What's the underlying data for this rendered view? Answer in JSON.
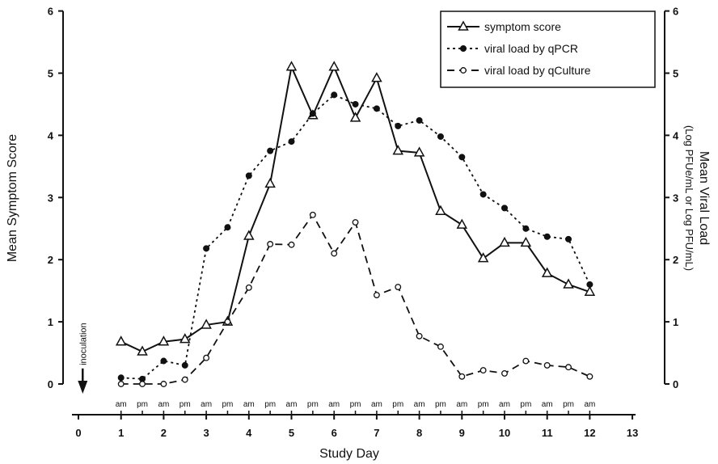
{
  "chart_data": {
    "type": "line",
    "x_axis": {
      "title": "Study Day",
      "range": [
        0,
        13
      ],
      "ticks": [
        "0",
        "1",
        "2",
        "3",
        "4",
        "5",
        "6",
        "7",
        "8",
        "9",
        "10",
        "11",
        "12",
        "13"
      ],
      "sub_ticks": [
        {
          "x": 1,
          "label": "am"
        },
        {
          "x": 1.5,
          "label": "pm"
        },
        {
          "x": 2,
          "label": "am"
        },
        {
          "x": 2.5,
          "label": "pm"
        },
        {
          "x": 3,
          "label": "am"
        },
        {
          "x": 3.5,
          "label": "pm"
        },
        {
          "x": 4,
          "label": "am"
        },
        {
          "x": 4.5,
          "label": "pm"
        },
        {
          "x": 5,
          "label": "am"
        },
        {
          "x": 5.5,
          "label": "pm"
        },
        {
          "x": 6,
          "label": "am"
        },
        {
          "x": 6.5,
          "label": "pm"
        },
        {
          "x": 7,
          "label": "am"
        },
        {
          "x": 7.5,
          "label": "pm"
        },
        {
          "x": 8,
          "label": "am"
        },
        {
          "x": 8.5,
          "label": "pm"
        },
        {
          "x": 9,
          "label": "am"
        },
        {
          "x": 9.5,
          "label": "pm"
        },
        {
          "x": 10,
          "label": "am"
        },
        {
          "x": 10.5,
          "label": "pm"
        },
        {
          "x": 11,
          "label": "am"
        },
        {
          "x": 11.5,
          "label": "pm"
        },
        {
          "x": 12,
          "label": "am"
        }
      ]
    },
    "y_left": {
      "title": "Mean Symptom Score",
      "range": [
        0,
        6
      ],
      "ticks": [
        "0",
        "1",
        "2",
        "3",
        "4",
        "5",
        "6"
      ]
    },
    "y_right": {
      "title": "Mean Viral Load",
      "subtitle": "(Log PFUe/mL or Log PFU/mL)",
      "range": [
        0,
        6
      ],
      "ticks": [
        "0",
        "1",
        "2",
        "3",
        "4",
        "5",
        "6"
      ]
    },
    "annotation": {
      "text": "inoculation",
      "x": 0.1
    },
    "legend": {
      "position": "top-right"
    },
    "series": [
      {
        "name": "symptom score",
        "style": "solid",
        "marker": "open-triangle",
        "color": "#111111",
        "points": [
          [
            1,
            0.68
          ],
          [
            1.5,
            0.52
          ],
          [
            2,
            0.68
          ],
          [
            2.5,
            0.72
          ],
          [
            3,
            0.95
          ],
          [
            3.5,
            1.0
          ],
          [
            4,
            2.38
          ],
          [
            4.5,
            3.22
          ],
          [
            5,
            5.1
          ],
          [
            5.5,
            4.32
          ],
          [
            6,
            5.1
          ],
          [
            6.5,
            4.28
          ],
          [
            7,
            4.92
          ],
          [
            7.5,
            3.75
          ],
          [
            8,
            3.72
          ],
          [
            8.5,
            2.78
          ],
          [
            9,
            2.56
          ],
          [
            9.5,
            2.02
          ],
          [
            10,
            2.27
          ],
          [
            10.5,
            2.27
          ],
          [
            11,
            1.78
          ],
          [
            11.5,
            1.6
          ],
          [
            12,
            1.48
          ]
        ]
      },
      {
        "name": "viral load by qPCR",
        "style": "dotted",
        "marker": "filled-circle",
        "color": "#111111",
        "points": [
          [
            1,
            0.1
          ],
          [
            1.5,
            0.08
          ],
          [
            2,
            0.37
          ],
          [
            2.5,
            0.3
          ],
          [
            3,
            2.18
          ],
          [
            3.5,
            2.52
          ],
          [
            4,
            3.35
          ],
          [
            4.5,
            3.75
          ],
          [
            5,
            3.9
          ],
          [
            5.5,
            4.35
          ],
          [
            6,
            4.65
          ],
          [
            6.5,
            4.5
          ],
          [
            7,
            4.43
          ],
          [
            7.5,
            4.15
          ],
          [
            8,
            4.24
          ],
          [
            8.5,
            3.98
          ],
          [
            9,
            3.65
          ],
          [
            9.5,
            3.05
          ],
          [
            10,
            2.83
          ],
          [
            10.5,
            2.5
          ],
          [
            11,
            2.37
          ],
          [
            11.5,
            2.33
          ],
          [
            12,
            1.6
          ]
        ]
      },
      {
        "name": "viral load by qCulture",
        "style": "dashed",
        "marker": "open-circle",
        "color": "#111111",
        "points": [
          [
            1,
            0.0
          ],
          [
            1.5,
            0.0
          ],
          [
            2,
            0.0
          ],
          [
            2.5,
            0.07
          ],
          [
            3,
            0.42
          ],
          [
            3.5,
            1.0
          ],
          [
            4,
            1.55
          ],
          [
            4.5,
            2.25
          ],
          [
            5,
            2.24
          ],
          [
            5.5,
            2.72
          ],
          [
            6,
            2.1
          ],
          [
            6.5,
            2.6
          ],
          [
            7,
            1.43
          ],
          [
            7.5,
            1.56
          ],
          [
            8,
            0.77
          ],
          [
            8.5,
            0.6
          ],
          [
            9,
            0.12
          ],
          [
            9.5,
            0.22
          ],
          [
            10,
            0.17
          ],
          [
            10.5,
            0.37
          ],
          [
            11,
            0.3
          ],
          [
            11.5,
            0.27
          ],
          [
            12,
            0.12
          ]
        ]
      }
    ]
  }
}
